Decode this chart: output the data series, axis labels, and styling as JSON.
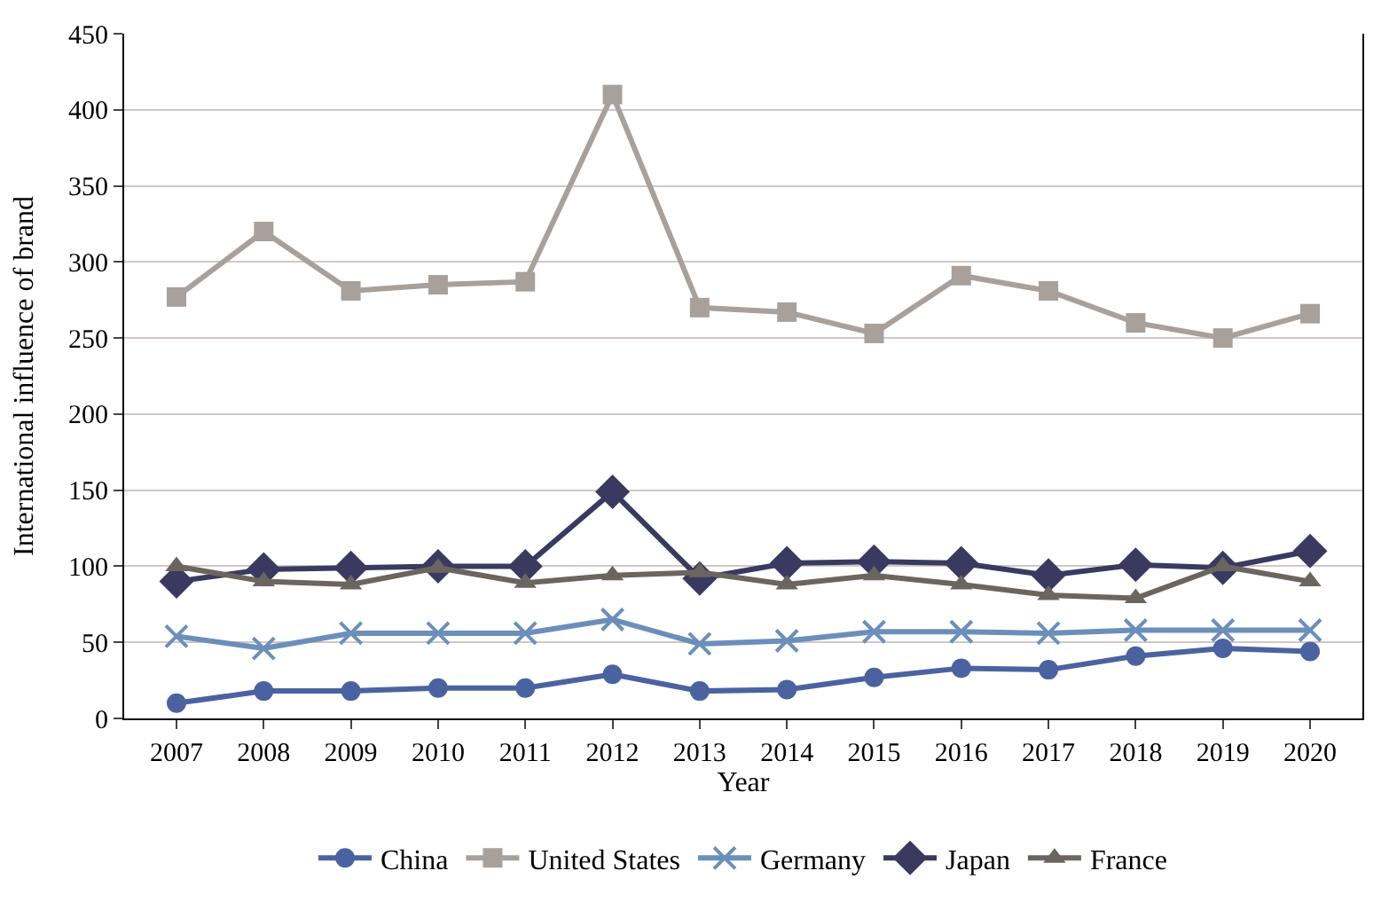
{
  "chart_data": {
    "type": "line",
    "xlabel": "Year",
    "ylabel": "International influence of brand",
    "categories": [
      "2007",
      "2008",
      "2009",
      "2010",
      "2011",
      "2012",
      "2013",
      "2014",
      "2015",
      "2016",
      "2017",
      "2018",
      "2019",
      "2020"
    ],
    "ylim": [
      0,
      450
    ],
    "yticks": [
      0,
      50,
      100,
      150,
      200,
      250,
      300,
      350,
      400,
      450
    ],
    "grid": "y",
    "legend": "bottom",
    "series": [
      {
        "name": "China",
        "color": "#4a63a0",
        "marker": "circle",
        "values": [
          10,
          18,
          18,
          20,
          20,
          29,
          18,
          19,
          27,
          33,
          32,
          41,
          46,
          44
        ]
      },
      {
        "name": "United States",
        "color": "#a8a09b",
        "marker": "square",
        "values": [
          277,
          320,
          281,
          285,
          287,
          410,
          270,
          267,
          253,
          291,
          281,
          260,
          250,
          266
        ]
      },
      {
        "name": "Germany",
        "color": "#6b8fba",
        "marker": "cross",
        "values": [
          54,
          46,
          56,
          56,
          56,
          65,
          49,
          51,
          57,
          57,
          56,
          58,
          58,
          58
        ]
      },
      {
        "name": "Japan",
        "color": "#3a3a60",
        "marker": "diamond",
        "values": [
          90,
          98,
          99,
          100,
          100,
          149,
          92,
          102,
          103,
          102,
          94,
          101,
          99,
          110
        ]
      },
      {
        "name": "France",
        "color": "#6b6560",
        "marker": "triangle",
        "values": [
          100,
          90,
          88,
          99,
          89,
          94,
          96,
          88,
          94,
          88,
          81,
          79,
          100,
          90
        ]
      }
    ]
  }
}
